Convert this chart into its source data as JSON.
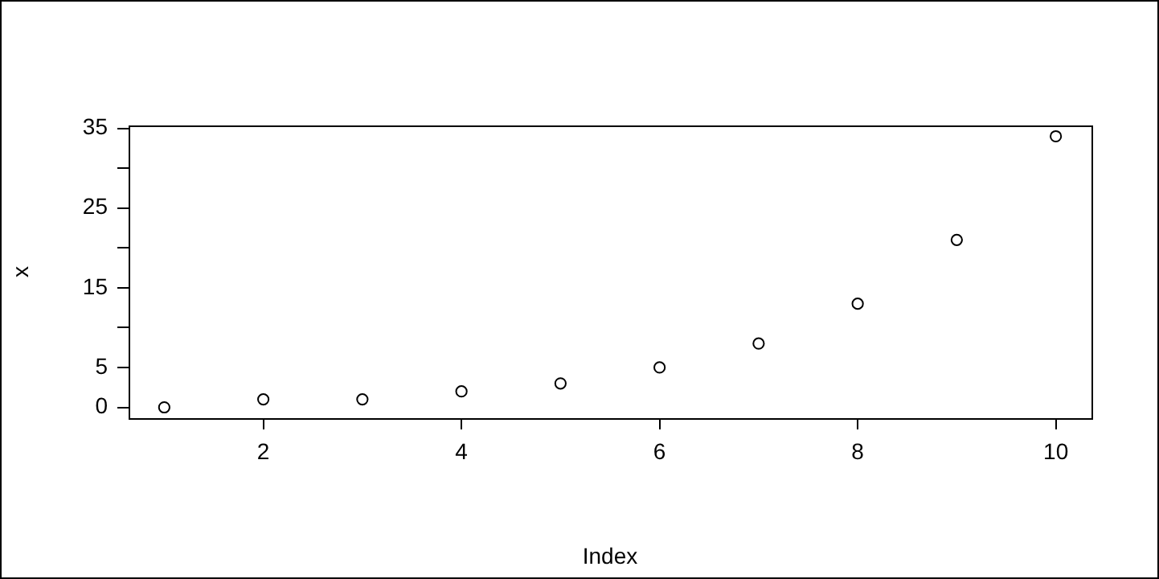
{
  "chart_data": {
    "type": "scatter",
    "xlabel": "Index",
    "ylabel": "x",
    "x": [
      1,
      2,
      3,
      4,
      5,
      6,
      7,
      8,
      9,
      10
    ],
    "series": [
      {
        "color": "#000000",
        "values": [
          0,
          1,
          1,
          2,
          3,
          5,
          8,
          13,
          21,
          34
        ]
      }
    ],
    "xlim": [
      0.64,
      10.36
    ],
    "ylim": [
      -1.36,
      35.36
    ],
    "xticks": [
      2,
      4,
      6,
      8,
      10
    ],
    "yticks": [
      0,
      5,
      {
        "value": 10,
        "label": null
      },
      15,
      {
        "value": 20,
        "label": null
      },
      25,
      {
        "value": 30,
        "label": null
      },
      35
    ],
    "grid": false,
    "legend": false,
    "marker": "circle"
  }
}
